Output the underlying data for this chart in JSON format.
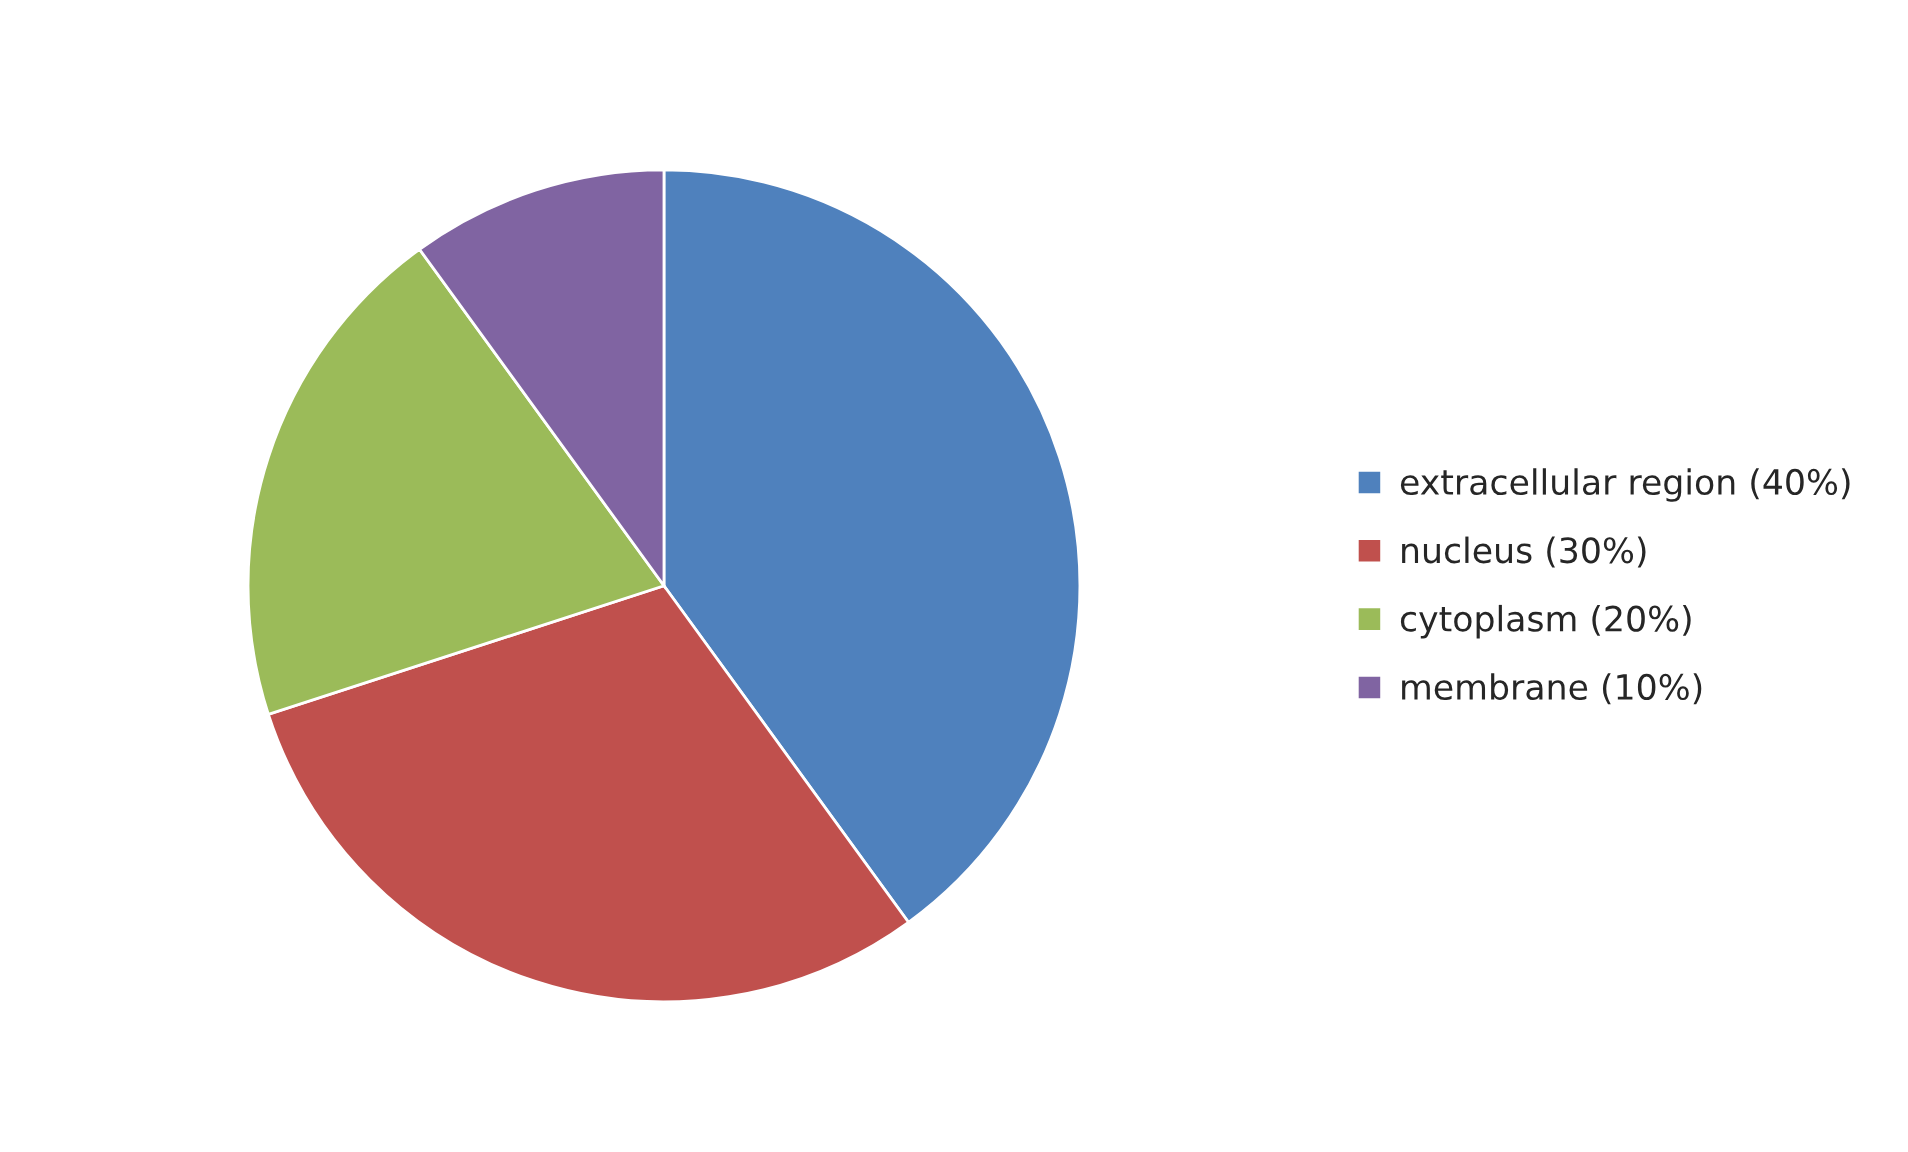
{
  "chart_data": {
    "type": "pie",
    "categories": [
      "extracellular region (40%)",
      "nucleus (30%)",
      "cytoplasm (20%)",
      "membrane (10%)"
    ],
    "values": [
      40,
      30,
      20,
      10
    ],
    "colors": [
      "#4f81bd",
      "#c0504d",
      "#9bbb59",
      "#8064a2"
    ],
    "legend": "right"
  }
}
